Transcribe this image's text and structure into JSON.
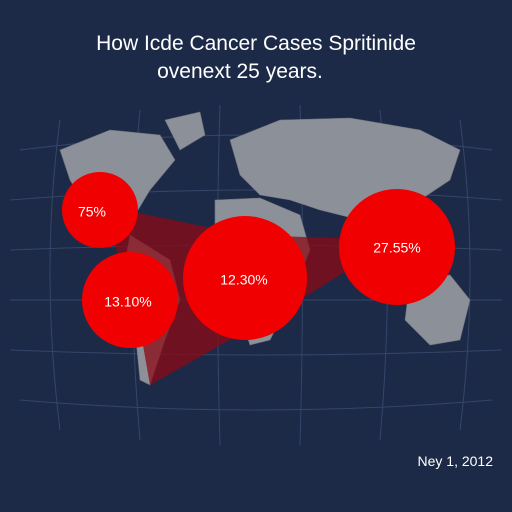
{
  "header": {
    "title_line_1": "How Icde Cancer Cases Spritinide",
    "title_line_2": "ovenext 25 years."
  },
  "bubbles": [
    {
      "label": "75%"
    },
    {
      "label": "13.10%"
    },
    {
      "label": "12.30%"
    },
    {
      "label": "27.55%"
    }
  ],
  "footer": {
    "date": "Ney 1, 2012"
  }
}
